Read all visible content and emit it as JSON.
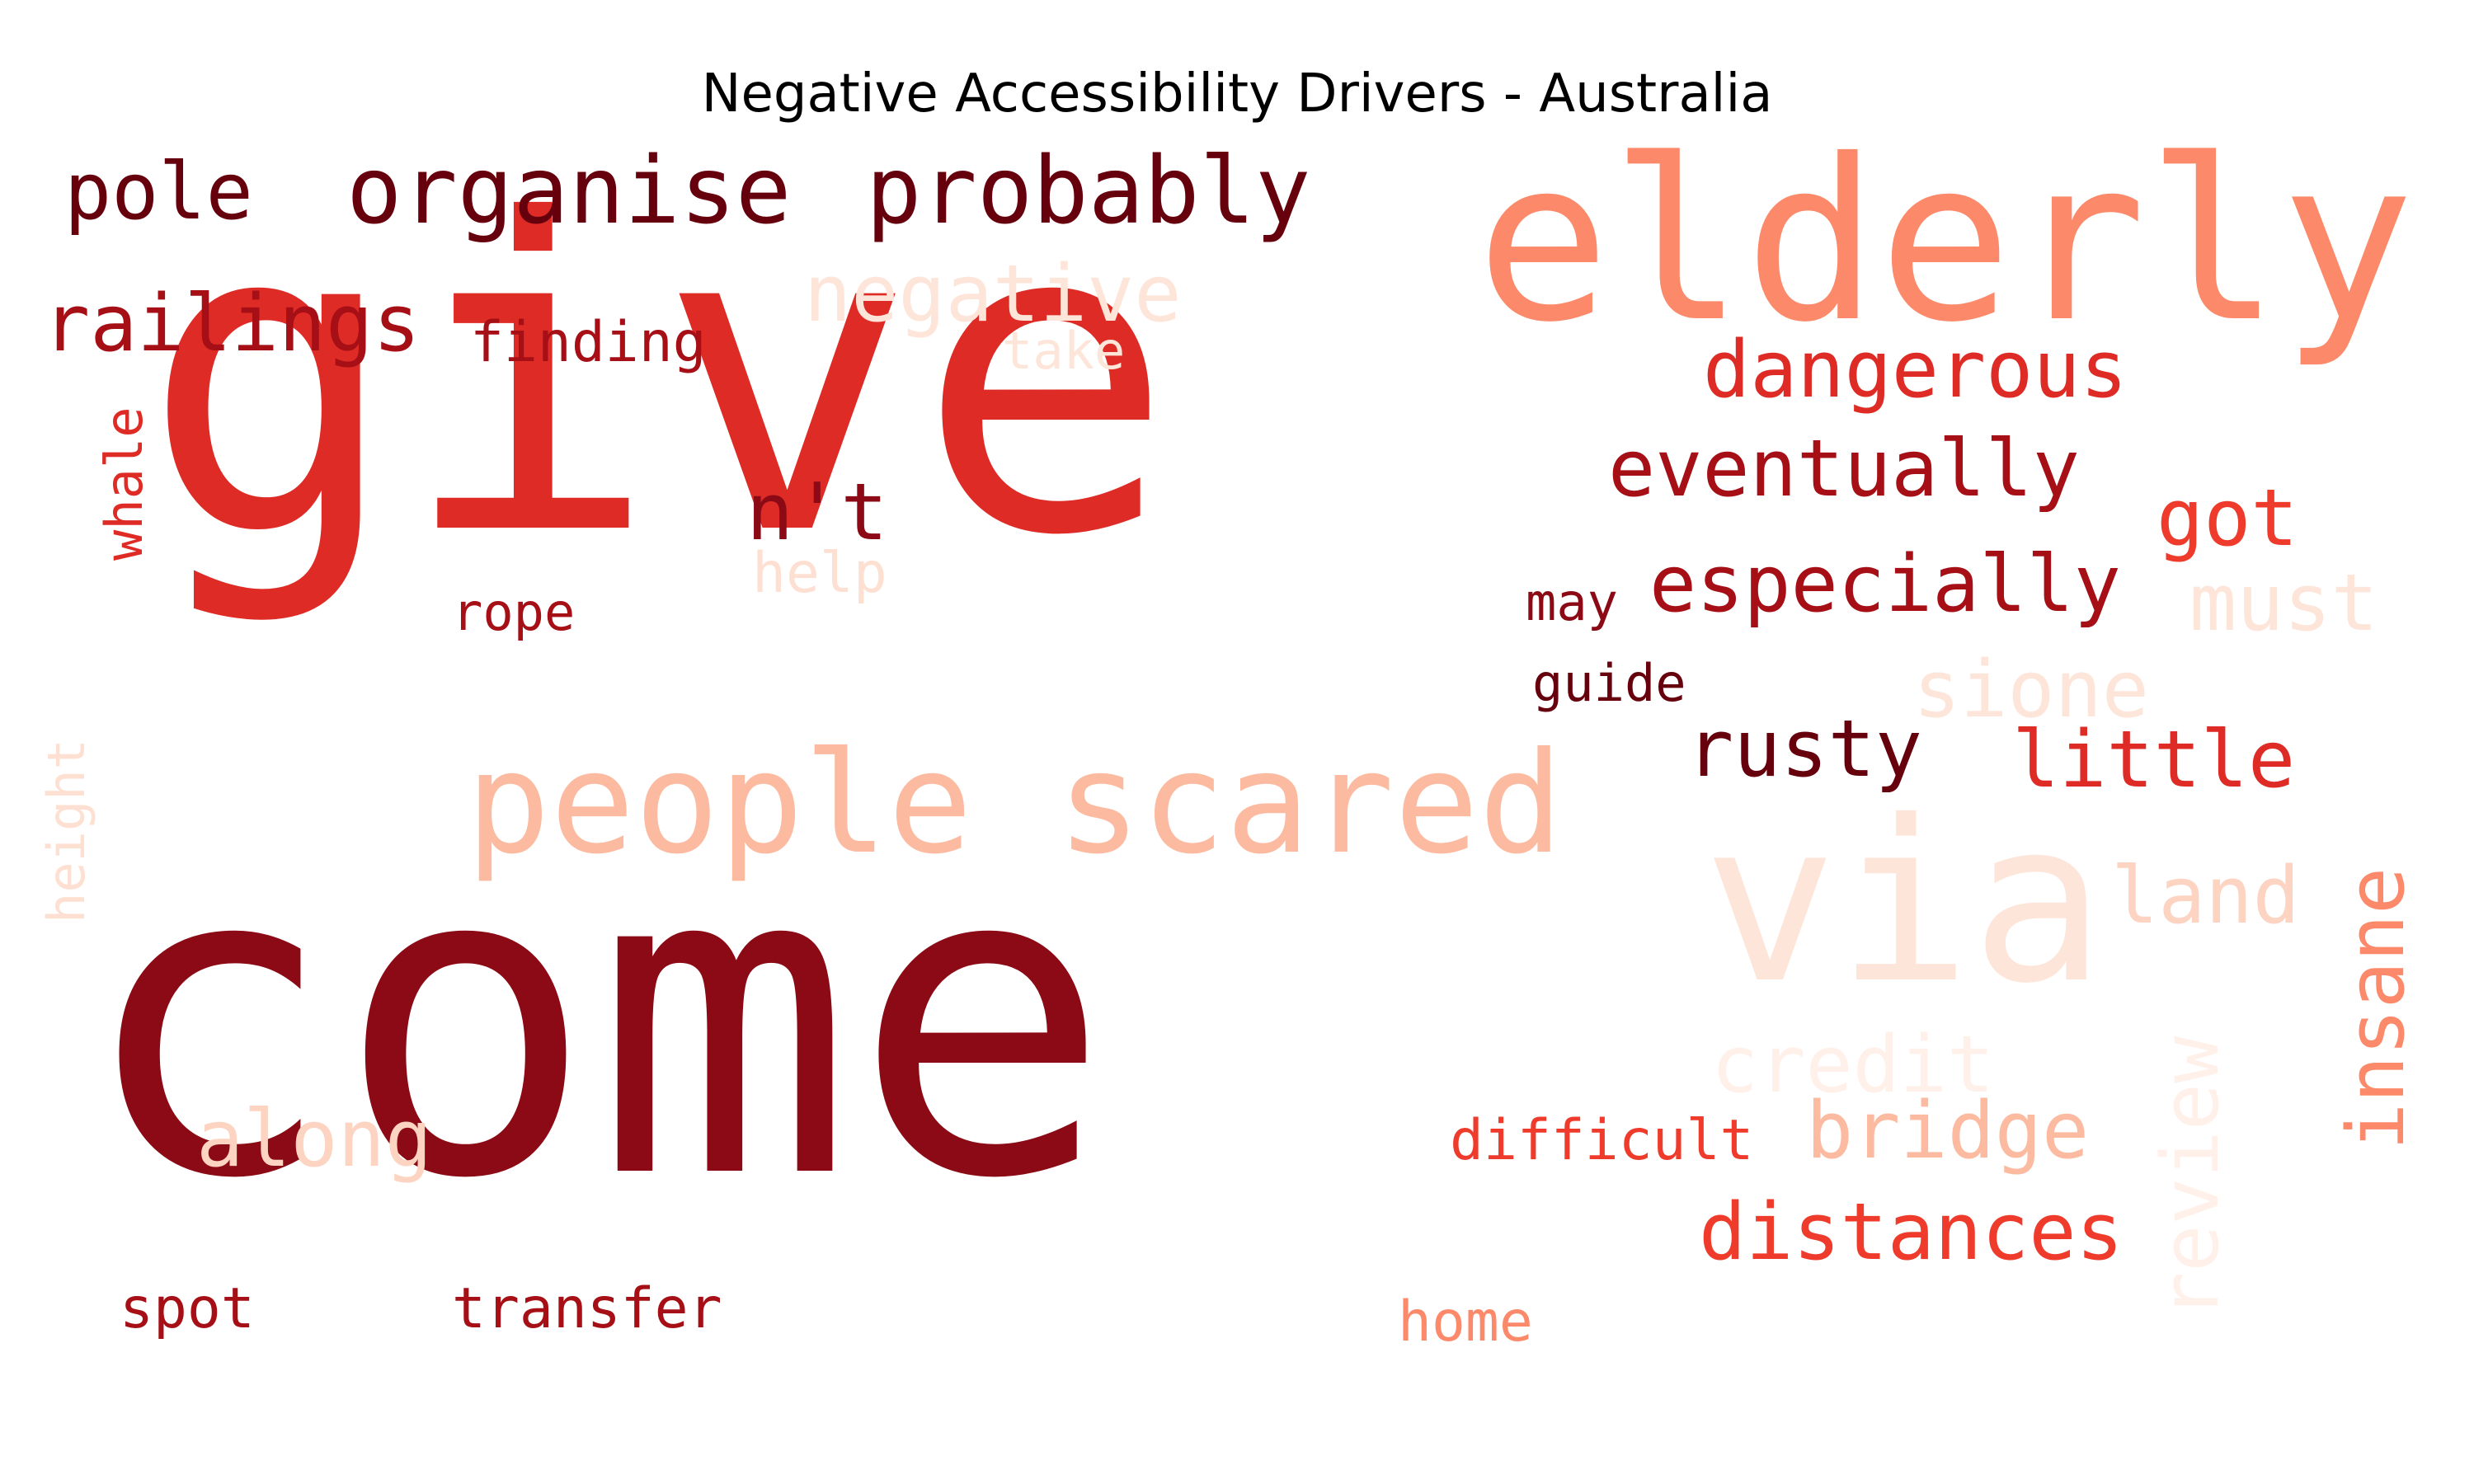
{
  "title": "Negative Accessibility Drivers - Australia",
  "colors": {
    "darkest": "#67000d",
    "dark": "#8b0a15",
    "red": "#df2b25",
    "salmon": "#fc8a6a",
    "light": "#fcbba1",
    "palest": "#fee5d9"
  },
  "words": {
    "give": "give",
    "come": "come",
    "elderly": "elderly",
    "people_scared": "people scared",
    "via": "via",
    "organise": "organise",
    "probably": "probably",
    "pole": "pole",
    "railings": "railings",
    "finding": "finding",
    "negative": "negative",
    "take": "take",
    "dangerous": "dangerous",
    "eventually": "eventually",
    "got": "got",
    "especially": "especially",
    "must": "must",
    "nt": "n't",
    "help": "help",
    "rope": "rope",
    "may": "may",
    "guide": "guide",
    "sione": "sione",
    "rusty": "rusty",
    "little": "little",
    "land": "land",
    "insane": "insane",
    "credit": "credit",
    "review": "review",
    "along": "along",
    "difficult": "difficult",
    "bridge": "bridge",
    "distances": "distances",
    "spot": "spot",
    "transfer": "transfer",
    "home": "home",
    "whale": "whale",
    "height": "height"
  }
}
